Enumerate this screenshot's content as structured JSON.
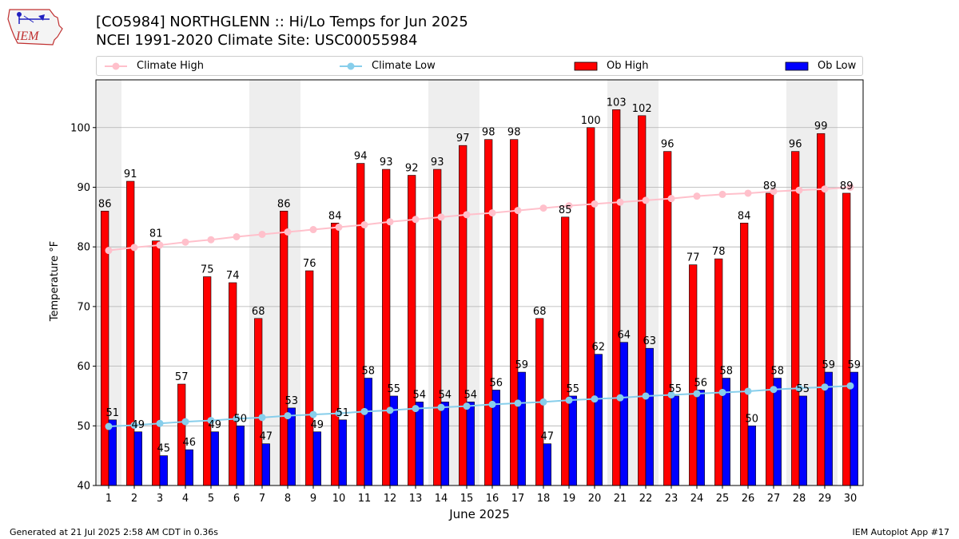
{
  "logo": {
    "text": "IEM"
  },
  "header": {
    "title_line1": "[CO5984] NORTHGLENN :: Hi/Lo Temps for Jun 2025",
    "title_line2": "NCEI 1991-2020 Climate Site: USC00055984"
  },
  "footer": {
    "generated": "Generated at 21 Jul 2025 2:58 AM CDT in 0.36s",
    "app": "IEM Autoplot App #17"
  },
  "colors": {
    "ob_high": "#ff0000",
    "ob_low": "#0000ff",
    "climate_high": "#ffc0cb",
    "climate_low": "#87ceeb",
    "weekend_band": "#eeeeee",
    "grid": "#b0b0b0"
  },
  "chart_data": {
    "type": "bar",
    "xlabel": "June 2025",
    "ylabel": "Temperature $^\\circ$F",
    "ylim": [
      40,
      108
    ],
    "yticks": [
      40,
      50,
      60,
      70,
      80,
      90,
      100
    ],
    "categories": [
      "1",
      "2",
      "3",
      "4",
      "5",
      "6",
      "7",
      "8",
      "9",
      "10",
      "11",
      "12",
      "13",
      "14",
      "15",
      "16",
      "17",
      "18",
      "19",
      "20",
      "21",
      "22",
      "23",
      "24",
      "25",
      "26",
      "27",
      "28",
      "29",
      "30"
    ],
    "grid": "horizontal",
    "legend_position": "top",
    "shaded_days": [
      1,
      7,
      8,
      14,
      15,
      21,
      22,
      28,
      29
    ],
    "series": [
      {
        "name": "Ob High",
        "kind": "bar",
        "values": [
          86,
          91,
          81,
          57,
          75,
          74,
          68,
          86,
          76,
          84,
          94,
          93,
          92,
          93,
          97,
          98,
          98,
          68,
          85,
          100,
          103,
          102,
          96,
          77,
          78,
          84,
          89,
          96,
          99,
          89
        ]
      },
      {
        "name": "Ob Low",
        "kind": "bar",
        "values": [
          51,
          49,
          45,
          46,
          49,
          50,
          47,
          53,
          49,
          51,
          58,
          55,
          54,
          54,
          54,
          56,
          59,
          47,
          55,
          62,
          64,
          63,
          55,
          56,
          58,
          50,
          58,
          55,
          59,
          59
        ]
      },
      {
        "name": "Climate High",
        "kind": "line",
        "values": [
          79.4,
          79.9,
          80.3,
          80.8,
          81.2,
          81.7,
          82.1,
          82.5,
          82.9,
          83.3,
          83.7,
          84.2,
          84.6,
          85.0,
          85.4,
          85.7,
          86.1,
          86.5,
          86.9,
          87.2,
          87.5,
          87.8,
          88.1,
          88.5,
          88.8,
          89.0,
          89.3,
          89.5,
          89.7,
          90.0
        ]
      },
      {
        "name": "Climate Low",
        "kind": "line",
        "values": [
          49.9,
          50.1,
          50.4,
          50.7,
          50.9,
          51.2,
          51.4,
          51.7,
          51.9,
          52.1,
          52.4,
          52.6,
          52.9,
          53.1,
          53.3,
          53.6,
          53.8,
          54.0,
          54.3,
          54.5,
          54.7,
          55.0,
          55.2,
          55.4,
          55.6,
          55.8,
          56.1,
          56.3,
          56.5,
          56.7
        ]
      }
    ]
  }
}
